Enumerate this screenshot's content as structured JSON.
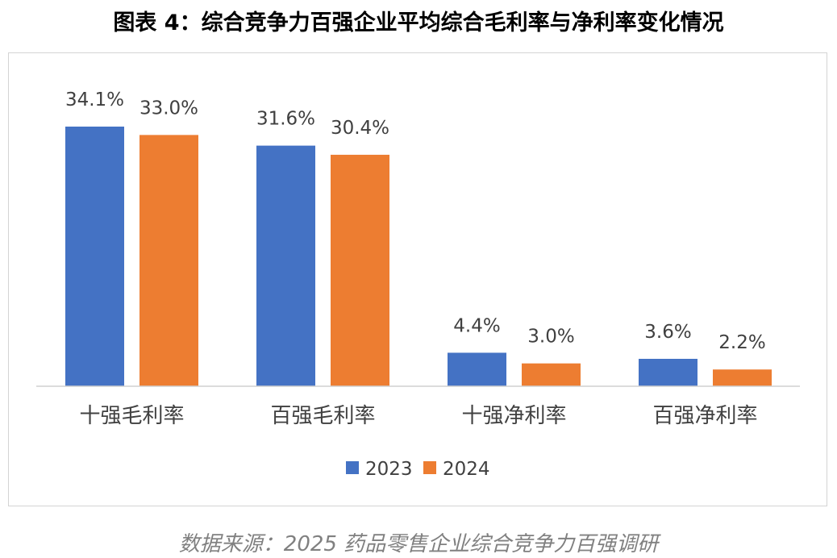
{
  "title": "图表 4：综合竞争力百强企业平均综合毛利率与净利率变化情况",
  "source": "数据来源：2025 药品零售企业综合竞争力百强调研",
  "colors": {
    "series_2023": "#4472c4",
    "series_2024": "#ed7d31"
  },
  "chart_data": {
    "type": "bar",
    "categories": [
      "十强毛利率",
      "百强毛利率",
      "十强净利率",
      "百强净利率"
    ],
    "series": [
      {
        "name": "2023",
        "values": [
          34.1,
          31.6,
          4.4,
          3.6
        ],
        "labels": [
          "34.1%",
          "31.6%",
          "4.4%",
          "3.6%"
        ]
      },
      {
        "name": "2024",
        "values": [
          33.0,
          30.4,
          3.0,
          2.2
        ],
        "labels": [
          "33.0%",
          "30.4%",
          "3.0%",
          "2.2%"
        ]
      }
    ],
    "ylim": [
      0,
      34.1
    ],
    "grid": false,
    "legend": "bottom"
  }
}
